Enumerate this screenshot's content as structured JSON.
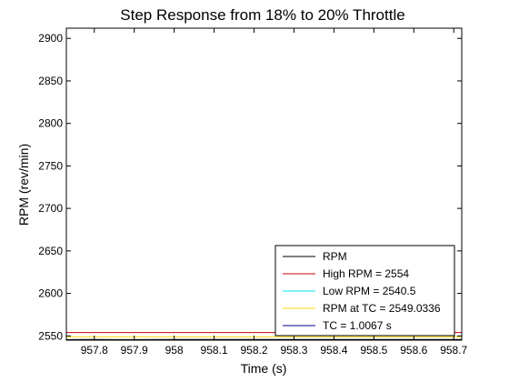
{
  "chart_data": {
    "type": "line",
    "title": "Step Response from 18% to 20% Throttle",
    "xlabel": "Time (s)",
    "ylabel": "RPM (rev/min)",
    "xlim": [
      957.73,
      958.72
    ],
    "ylim": [
      2545,
      2912
    ],
    "x_ticks": [
      957.8,
      957.9,
      958,
      958.1,
      958.2,
      958.3,
      958.4,
      958.5,
      958.6,
      958.7
    ],
    "x_tick_labels": [
      "957.8",
      "957.9",
      "958",
      "958.1",
      "958.2",
      "958.3",
      "958.4",
      "958.5",
      "958.6",
      "958.7"
    ],
    "y_ticks": [
      2550,
      2600,
      2650,
      2700,
      2750,
      2800,
      2850,
      2900
    ],
    "y_tick_labels": [
      "2550",
      "2600",
      "2650",
      "2700",
      "2750",
      "2800",
      "2850",
      "2900"
    ],
    "grid": false,
    "legend_position": "bottom-right",
    "series": [
      {
        "name": "RPM",
        "color": "#000000",
        "x": [
          957.73,
          957.8,
          957.9,
          958.0,
          958.1,
          958.2,
          958.3,
          958.4,
          958.5,
          958.6,
          958.72
        ],
        "y": [
          2545.6,
          2545.7,
          2545.6,
          2545.8,
          2545.7,
          2545.9,
          2545.8,
          2545.7,
          2545.9,
          2545.8,
          2545.8
        ]
      },
      {
        "name": "High RPM = 2554",
        "color": "#cc0000",
        "x": [
          957.73,
          958.72
        ],
        "y": [
          2554,
          2554
        ]
      },
      {
        "name": "Low RPM = 2540.5",
        "color": "#00e5ee",
        "x": [
          957.73,
          958.72
        ],
        "y": [
          2540.5,
          2540.5
        ]
      },
      {
        "name": "RPM at TC = 2549.0336",
        "color": "#ffd700",
        "x": [
          957.73,
          958.72
        ],
        "y": [
          2549.0336,
          2549.0336
        ]
      },
      {
        "name": "TC = 1.0067 s",
        "color": "#00008b",
        "x": [],
        "y": []
      }
    ]
  }
}
